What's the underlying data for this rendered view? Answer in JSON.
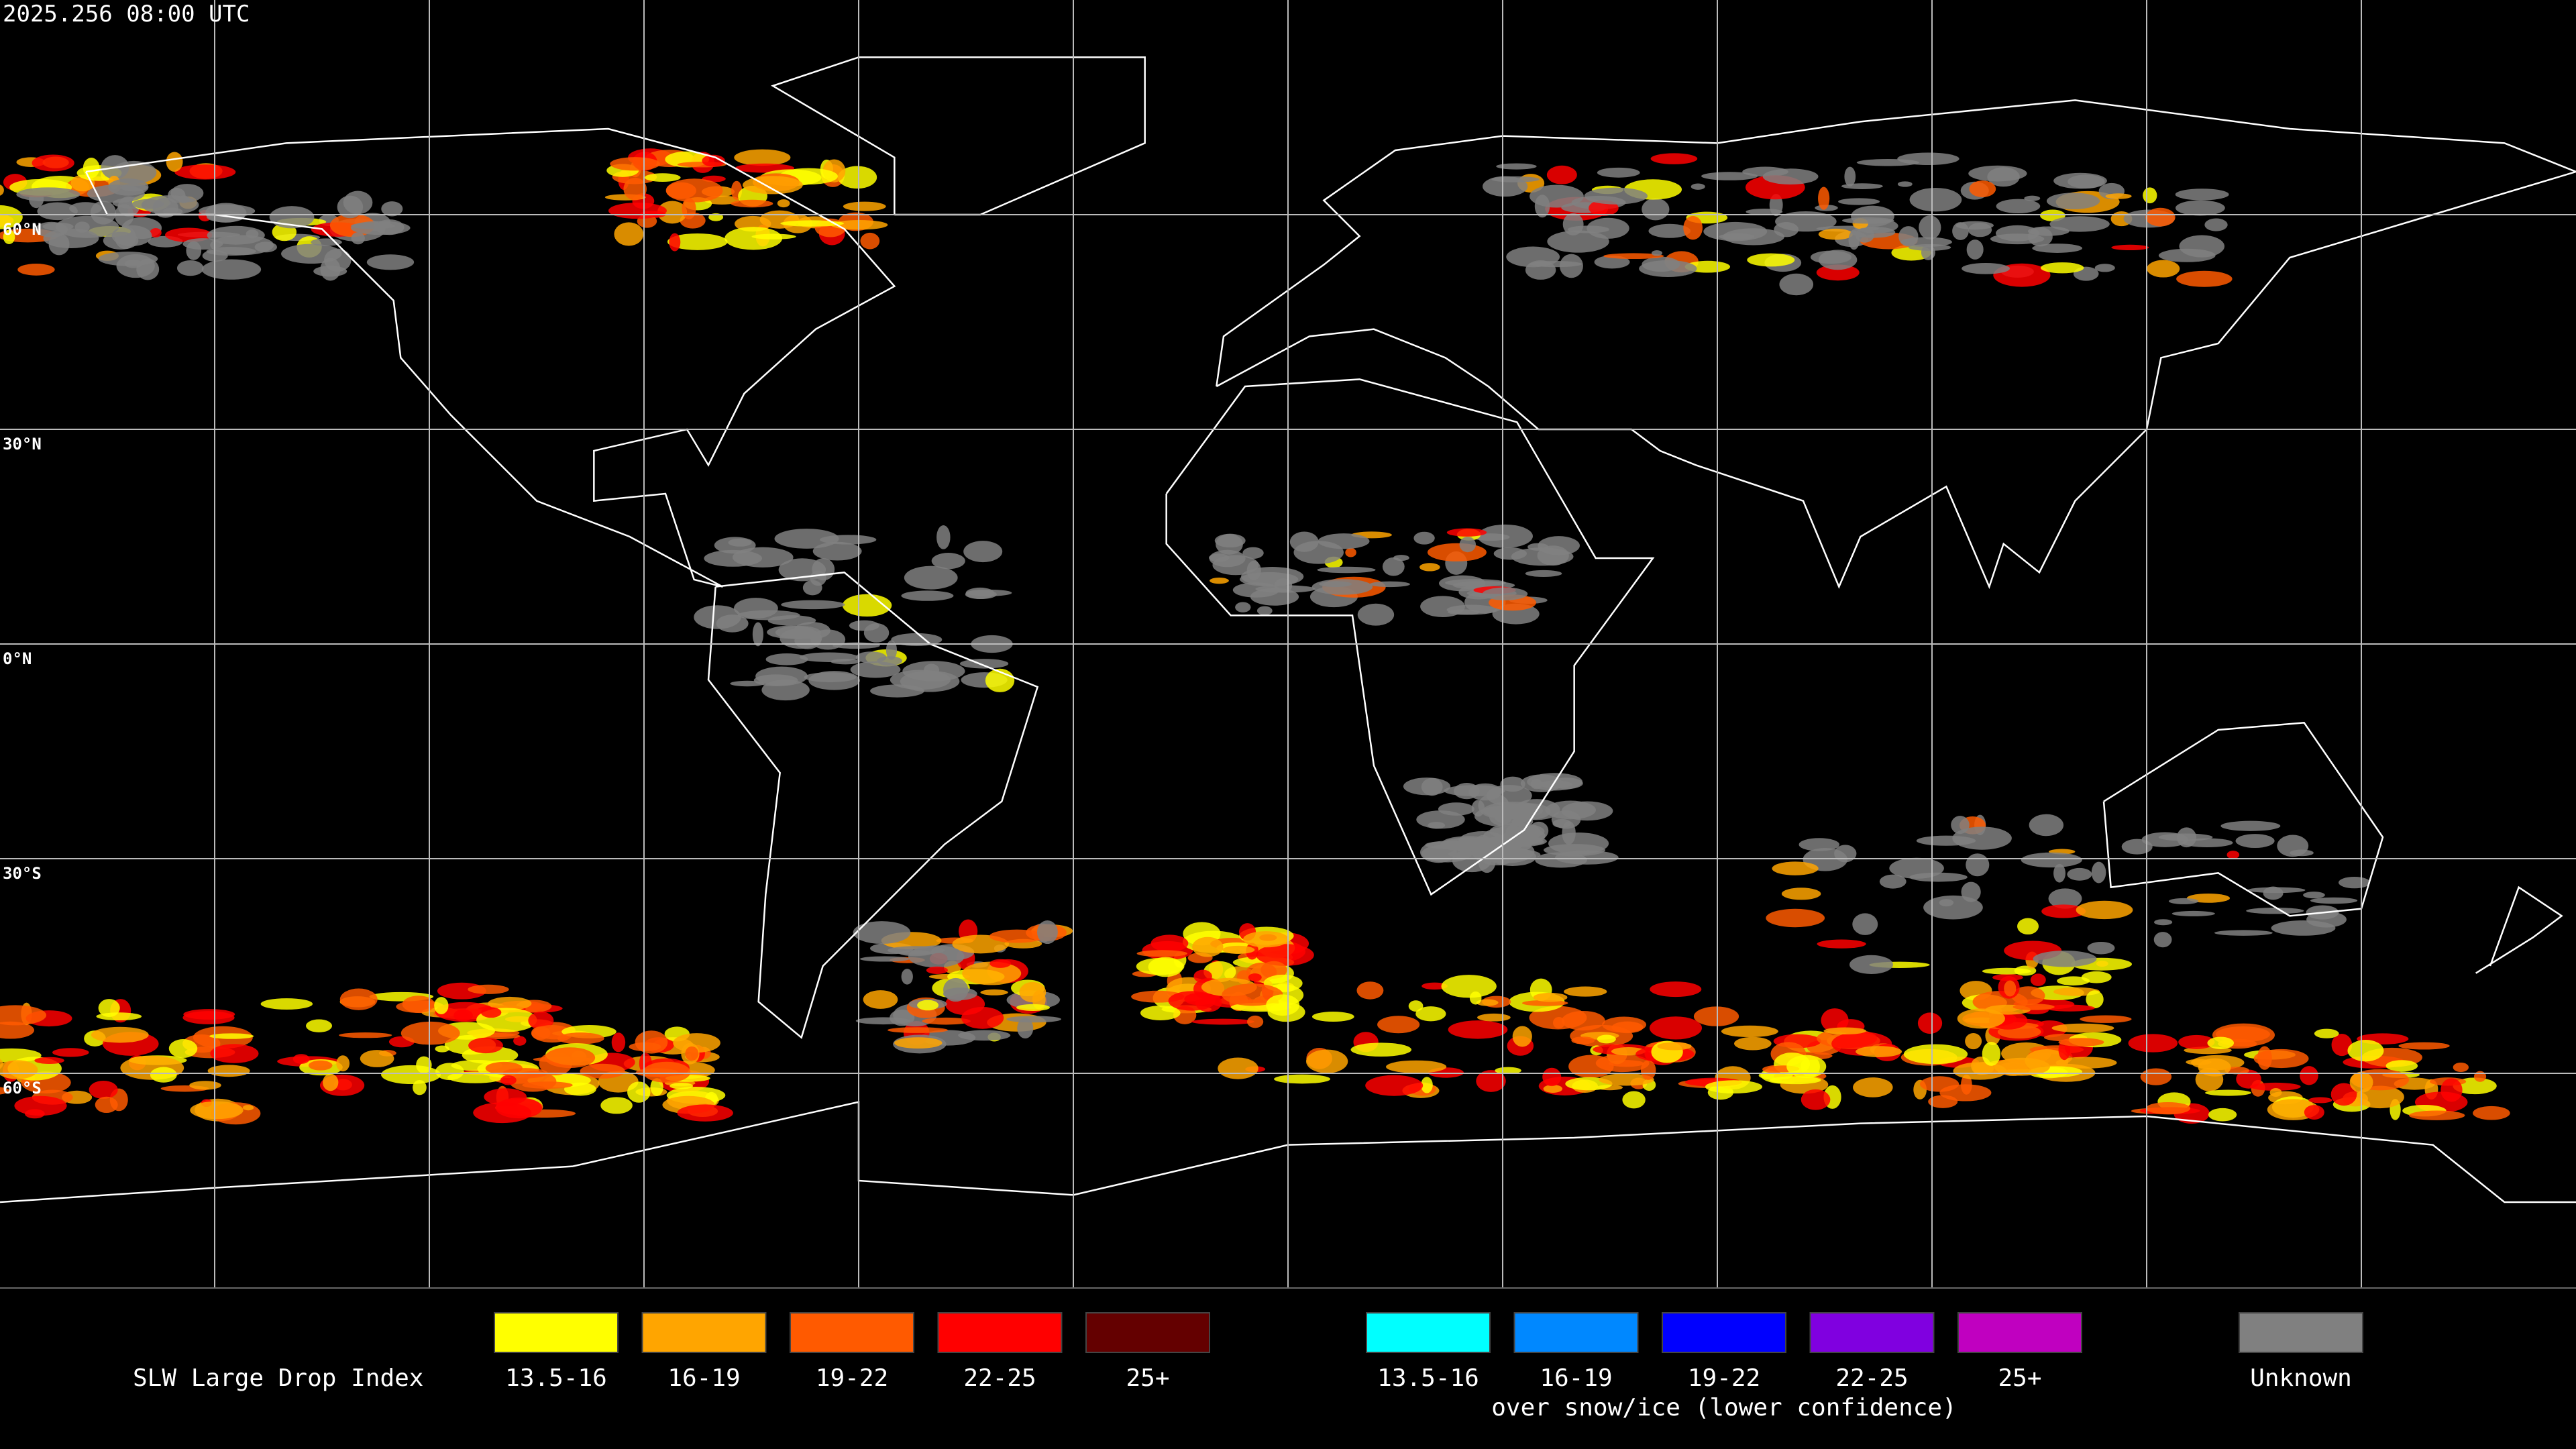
{
  "timestamp": "2025.256 08:00 UTC",
  "map": {
    "latitude_labels": [
      "60°N",
      "30°N",
      "0°N",
      "30°S",
      "60°S"
    ]
  },
  "legend": {
    "title": "SLW Large Drop Index",
    "groups": [
      {
        "items": [
          {
            "label": "13.5-16",
            "color": "#ffff00"
          },
          {
            "label": "16-19",
            "color": "#ffa500"
          },
          {
            "label": "19-22",
            "color": "#ff5a00"
          },
          {
            "label": "22-25",
            "color": "#ff0000"
          },
          {
            "label": "25+",
            "color": "#640000"
          }
        ]
      },
      {
        "items": [
          {
            "label": "13.5-16",
            "color": "#00ffff"
          },
          {
            "label": "16-19",
            "color": "#0088ff"
          },
          {
            "label": "19-22",
            "color": "#0000ff"
          },
          {
            "label": "22-25",
            "color": "#8000e0"
          },
          {
            "label": "25+",
            "color": "#c000c0"
          }
        ],
        "caption": "over snow/ice (lower confidence)"
      },
      {
        "items": [
          {
            "label": "Unknown",
            "color": "#808080"
          }
        ]
      }
    ]
  }
}
